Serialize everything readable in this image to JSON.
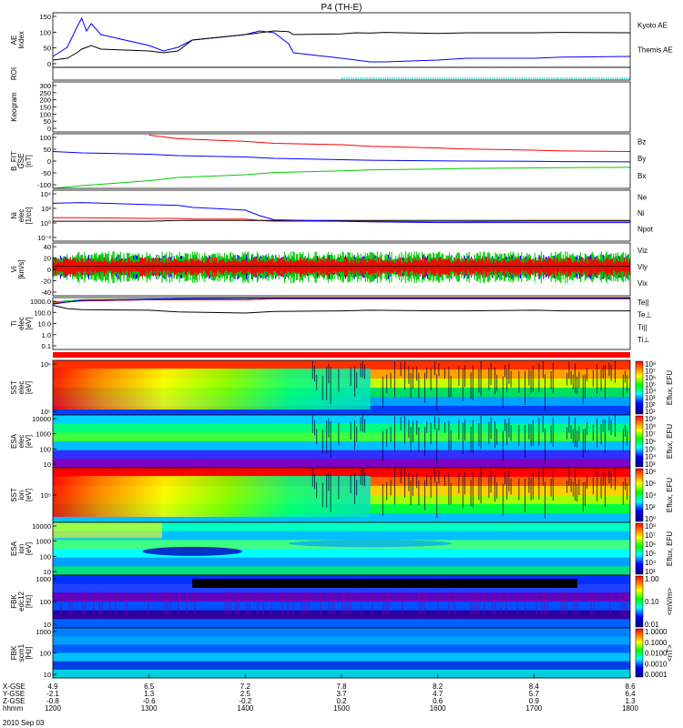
{
  "title": "P4 (TH-E)",
  "colors": {
    "blue": "#0000ff",
    "red": "#ff0000",
    "green": "#00cc00",
    "black": "#000000",
    "cyan": "#00cccc"
  },
  "x_axis": {
    "rows": [
      {
        "name": "X-GSE",
        "values": [
          "4.9",
          "6.5",
          "7.2",
          "7.8",
          "8.2",
          "8.4",
          "8.6"
        ]
      },
      {
        "name": "Y-GSE",
        "values": [
          "-2.1",
          "1.3",
          "2.5",
          "3.7",
          "4.7",
          "5.7",
          "6.4"
        ]
      },
      {
        "name": "Z-GSE",
        "values": [
          "-0.8",
          "-0.6",
          "-0.2",
          "0.2",
          "0.6",
          "0.9",
          "1.3"
        ]
      },
      {
        "name": "hhmm",
        "values": [
          "1200",
          "1300",
          "1400",
          "1500",
          "1600",
          "1700",
          "1800"
        ]
      }
    ],
    "date": "2010 Sep 03"
  },
  "chart_data": [
    {
      "type": "line",
      "name": "ae",
      "ylabel": "AE Index",
      "yticks": [
        "150",
        "100",
        "50",
        "0"
      ],
      "ylim": [
        0,
        150
      ],
      "x": [
        1200,
        1215,
        1225,
        1230,
        1235,
        1240,
        1250,
        1300,
        1315,
        1330,
        1345,
        1400,
        1415,
        1430,
        1445,
        1450,
        1500,
        1515,
        1530,
        1545,
        1600,
        1630,
        1700,
        1730,
        1800
      ],
      "series": [
        {
          "name": "Kyoto AE",
          "color": "blue",
          "values": [
            30,
            55,
            110,
            135,
            100,
            120,
            90,
            60,
            45,
            55,
            75,
            90,
            100,
            95,
            65,
            40,
            25,
            20,
            15,
            15,
            20,
            25,
            25,
            28,
            30
          ]
        },
        {
          "name": "Themis AE",
          "color": "black",
          "values": [
            20,
            25,
            40,
            50,
            55,
            60,
            50,
            45,
            40,
            45,
            75,
            90,
            95,
            100,
            98,
            90,
            92,
            95,
            94,
            96,
            93,
            95,
            95,
            96,
            95
          ]
        }
      ]
    },
    {
      "type": "heatmap",
      "name": "roi",
      "ylabel": "ROI",
      "yticks": []
    },
    {
      "type": "heatmap",
      "name": "keogram",
      "ylabel": "Keogram",
      "yticks": [
        "300",
        "250",
        "200",
        "150",
        "100",
        "50",
        "0"
      ]
    },
    {
      "type": "line",
      "name": "bfit",
      "ylabel": "B_FIT GSE [nT]",
      "yticks": [
        "100",
        "50",
        "0",
        "-50",
        "-100"
      ],
      "ylim": [
        -100,
        100
      ],
      "x": [
        1200,
        1230,
        1300,
        1330,
        1400,
        1430,
        1500,
        1530,
        1600,
        1630,
        1700,
        1730,
        1800
      ],
      "series": [
        {
          "name": "Bz",
          "color": "red",
          "values": [
            null,
            null,
            95,
            82,
            72,
            65,
            60,
            54,
            48,
            44,
            40,
            37,
            35
          ]
        },
        {
          "name": "By",
          "color": "green",
          "values": [
            -100,
            -90,
            -72,
            -60,
            -50,
            -42,
            -36,
            -32,
            -29,
            -27,
            -25,
            -24,
            -23
          ]
        },
        {
          "name": "Bx",
          "color": "blue",
          "values": [
            35,
            30,
            25,
            20,
            15,
            10,
            5,
            3,
            1,
            0,
            -1,
            -2,
            -3
          ]
        }
      ]
    },
    {
      "type": "line",
      "name": "ni",
      "ylabel": "Ni elec [1/cc]",
      "yticks": [
        "10⁴",
        "10²",
        "10⁰",
        "10⁻²"
      ],
      "log_scale": true,
      "ylim": [
        -2.7,
        4.7
      ],
      "x": [
        1200,
        1230,
        1300,
        1330,
        1345,
        1400,
        1415,
        1430,
        1500,
        1530,
        1600,
        1700,
        1800
      ],
      "series": [
        {
          "name": "Ne",
          "color": "red",
          "values": [
            0.7,
            0.7,
            0.6,
            0.6,
            0.5,
            0.5,
            0.3,
            0.2,
            0.2,
            0.2,
            0.1,
            0.2,
            0.2
          ]
        },
        {
          "name": "Ni",
          "color": "black",
          "values": [
            0.2,
            0.2,
            0.2,
            0.3,
            0.3,
            0.3,
            0.3,
            0.3,
            0.3,
            0.3,
            0.3,
            0.3,
            0.3
          ]
        },
        {
          "name": "Npot",
          "color": "blue",
          "values": [
            2.8,
            2.9,
            2.6,
            2.5,
            2.2,
            1.8,
            1.0,
            0.4,
            0.2,
            0.1,
            0.0,
            0.0,
            0.0
          ]
        }
      ]
    },
    {
      "type": "line",
      "name": "vi",
      "ylabel": "Vi [km/s]",
      "yticks": [
        "40",
        "20",
        "0",
        "-20",
        "-40"
      ],
      "ylim": [
        -50,
        40
      ],
      "x": [
        1200,
        1300,
        1400,
        1500,
        1600,
        1700,
        1800
      ],
      "series": [
        {
          "name": "Viz",
          "color": "red",
          "values": [
            0,
            0,
            0,
            0,
            0,
            0,
            0
          ]
        },
        {
          "name": "Viy",
          "color": "green",
          "values": [
            0,
            0,
            0,
            0,
            0,
            0,
            0
          ]
        },
        {
          "name": "Vix",
          "color": "blue",
          "values": [
            0,
            0,
            0,
            0,
            0,
            0,
            0
          ]
        }
      ]
    },
    {
      "type": "line",
      "name": "ti",
      "ylabel": "Ti elec [eV]",
      "yticks": [
        "1000.0",
        "100.0",
        "10.0",
        "1.0",
        "0.1"
      ],
      "log_scale": true,
      "ylim": [
        -1.2,
        3.5
      ],
      "x": [
        1200,
        1215,
        1230,
        1300,
        1330,
        1400,
        1430,
        1500,
        1530,
        1600,
        1630,
        1700,
        1730,
        1800
      ],
      "series": [
        {
          "name": "Te||",
          "color": "black",
          "values": [
            3.0,
            3.1,
            3.2,
            3.3,
            3.3,
            3.3,
            3.4,
            3.4,
            3.4,
            3.4,
            3.4,
            3.4,
            3.4,
            3.4
          ]
        },
        {
          "name": "Te⊥",
          "color": "red",
          "values": [
            3.0,
            3.1,
            3.2,
            3.3,
            3.3,
            3.3,
            3.4,
            3.4,
            3.4,
            3.4,
            3.4,
            3.4,
            3.4,
            3.4
          ]
        },
        {
          "name": "Ti||",
          "color": "green",
          "values": [
            3.1,
            3.2,
            3.3,
            3.35,
            3.4,
            3.45,
            3.45,
            3.45,
            3.45,
            3.45,
            3.45,
            3.45,
            3.45,
            3.45
          ]
        },
        {
          "name": "Ti⊥",
          "color": "blue",
          "values": [
            2.9,
            3.1,
            3.25,
            3.35,
            3.4,
            3.45,
            3.45,
            3.45,
            3.45,
            3.45,
            3.45,
            3.45,
            3.45,
            3.45
          ]
        },
        {
          "name": "",
          "color": "black",
          "values": [
            2.8,
            2.5,
            2.4,
            2.35,
            2.2,
            2.1,
            2.25,
            2.3,
            2.35,
            2.3,
            2.3,
            2.35,
            2.3,
            2.3
          ]
        }
      ]
    },
    {
      "type": "heatmap",
      "name": "sst_e",
      "ylabel": "SST elec [eV]",
      "yticks": [
        "10⁶",
        "10⁵"
      ],
      "colorbar": {
        "label": "Eflux, EFU",
        "ticks": [
          "10⁸",
          "10⁷",
          "10⁶",
          "10⁵",
          "10⁴",
          "10³",
          "10²",
          "10¹"
        ]
      }
    },
    {
      "type": "heatmap",
      "name": "esa_e",
      "ylabel": "ESA elec [eV]",
      "yticks": [
        "10000",
        "1000",
        "100",
        "10"
      ],
      "colorbar": {
        "label": "Eflux, EFU",
        "ticks": [
          "10⁹",
          "10⁸",
          "10⁷",
          "10⁶",
          "10⁵",
          "10⁴",
          "10³"
        ]
      }
    },
    {
      "type": "heatmap",
      "name": "sst_i",
      "ylabel": "SST ion [eV]",
      "yticks": [
        "10⁵"
      ],
      "colorbar": {
        "label": "Eflux, EFU",
        "ticks": [
          "10⁸",
          "10⁶",
          "10⁴",
          "10²",
          "10⁰"
        ]
      }
    },
    {
      "type": "heatmap",
      "name": "esa_i",
      "ylabel": "ESA ion [eV]",
      "yticks": [
        "10000",
        "1000",
        "100",
        "10"
      ],
      "colorbar": {
        "label": "Eflux, EFU",
        "ticks": [
          "10⁸",
          "10⁷",
          "10⁶",
          "10⁵",
          "10⁴",
          "10³"
        ]
      }
    },
    {
      "type": "heatmap",
      "name": "fbk_e",
      "ylabel": "FBK edc12 [Hz]",
      "yticks": [
        "1000",
        "100",
        "10"
      ],
      "colorbar": {
        "label": "<mV/m>",
        "ticks": [
          "1.00",
          "0.10",
          "0.01"
        ]
      }
    },
    {
      "type": "heatmap",
      "name": "fbk_b",
      "ylabel": "FBK scm1 [Hz]",
      "yticks": [
        "1000",
        "100",
        "10"
      ],
      "colorbar": {
        "label": "<nT>",
        "ticks": [
          "1.0000",
          "0.1000",
          "0.0100",
          "0.0010",
          "0.0001"
        ]
      }
    }
  ]
}
